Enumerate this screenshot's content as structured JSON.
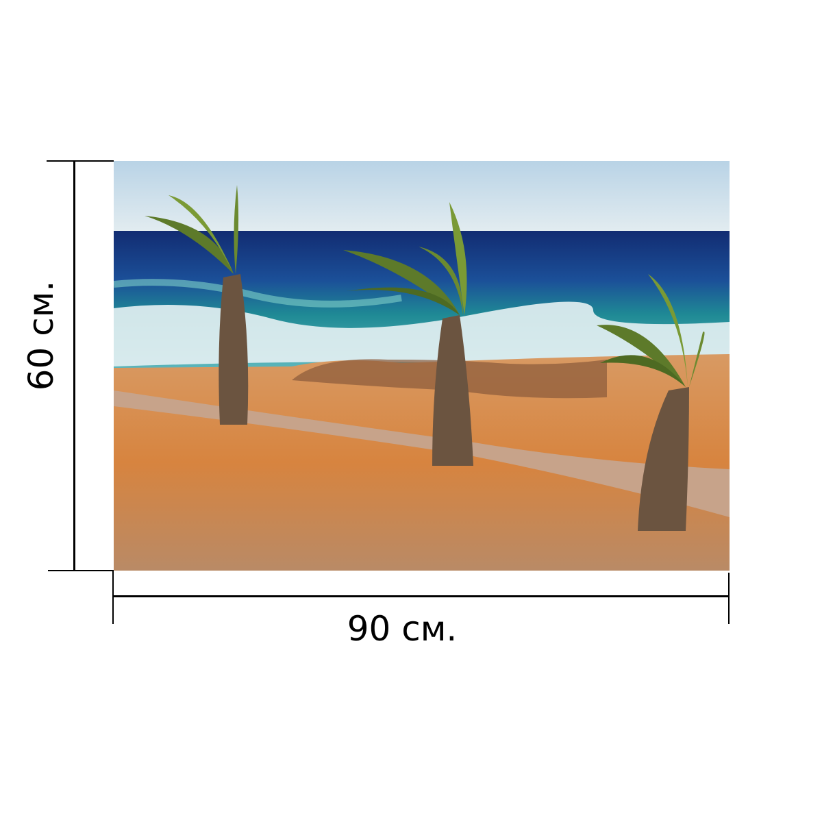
{
  "dimensions": {
    "width_label": "90 см.",
    "height_label": "60 см."
  },
  "photo": {
    "subject": "palm-trees-on-windy-beach",
    "colors": {
      "sky": "#c9dcea",
      "sea_deep": "#16347a",
      "sea_teal": "#1f8a95",
      "surf": "#e8f2f4",
      "sand": "#d98a4a",
      "path": "#c9a58a",
      "palm_leaf": "#5d7a2a",
      "trunk": "#6b5440"
    }
  }
}
